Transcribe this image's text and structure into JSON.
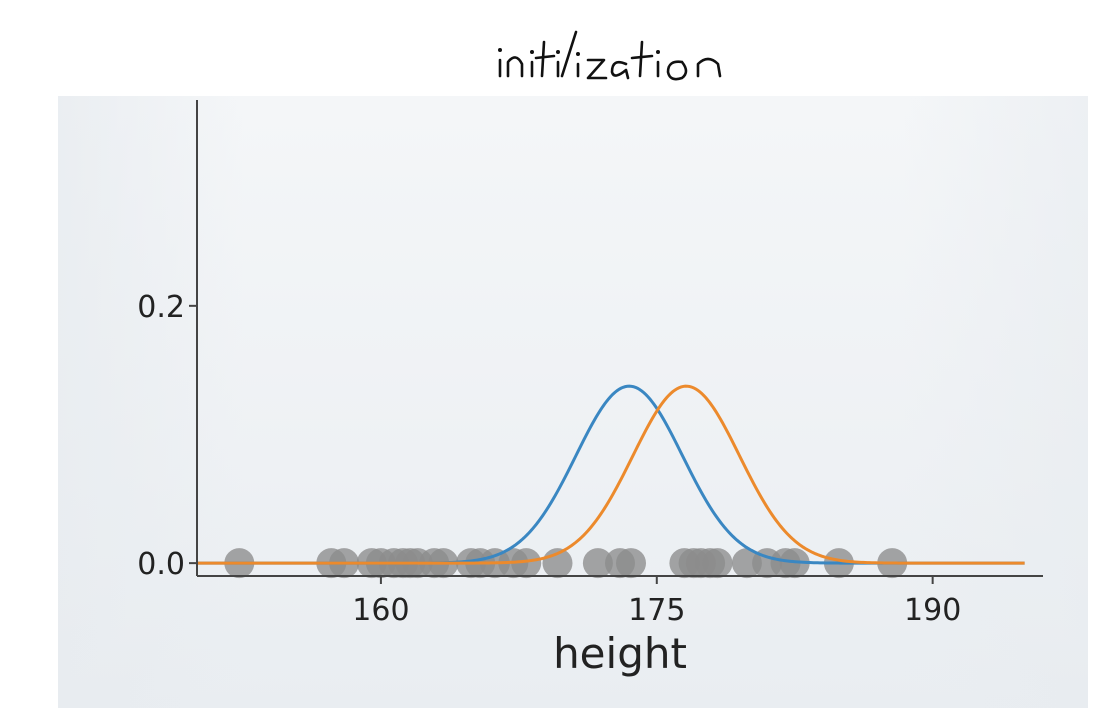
{
  "annotation": {
    "text": "initilization"
  },
  "chart_data": {
    "type": "line",
    "title": "initilization",
    "xlabel": "height",
    "ylabel": "",
    "xlim": [
      150,
      196
    ],
    "ylim": [
      -0.01,
      0.36
    ],
    "xticks": [
      160,
      175,
      190
    ],
    "yticks": [
      0.0,
      0.2
    ],
    "x_range_curve": [
      150,
      195
    ],
    "series": [
      {
        "kind": "gaussian",
        "mean": 173.5,
        "std": 2.9,
        "color": "#3a87c2"
      },
      {
        "kind": "gaussian",
        "mean": 176.6,
        "std": 2.9,
        "color": "#ec8a2c"
      }
    ],
    "points": {
      "y": 0,
      "color": "#8c8c8c",
      "x": [
        152.3,
        157.3,
        158.0,
        159.5,
        160.0,
        160.7,
        161.2,
        161.6,
        162.0,
        162.9,
        163.4,
        164.9,
        165.4,
        166.2,
        167.2,
        167.9,
        169.6,
        171.8,
        173.0,
        173.6,
        176.5,
        177.0,
        177.4,
        177.9,
        178.3,
        179.9,
        181.0,
        182.0,
        182.5,
        184.9,
        187.8
      ]
    },
    "grid": false,
    "legend": "none"
  }
}
